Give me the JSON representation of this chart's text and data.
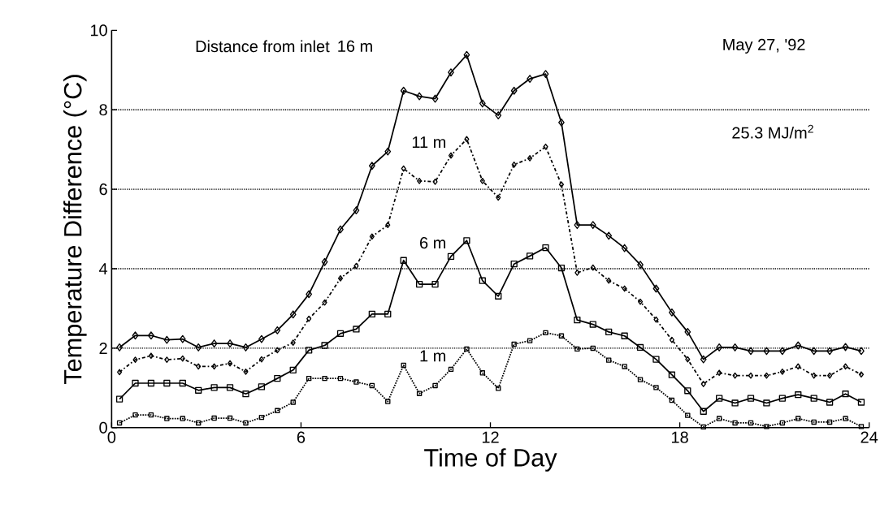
{
  "chart_data": {
    "type": "line",
    "xlabel": "Time of Day",
    "ylabel": "Temperature Difference (°C)",
    "legend_title": "Distance from inlet",
    "annotations": [
      "May 27, '92",
      "25.3 MJ/m$^{2}$"
    ],
    "x": [
      0.25,
      0.75,
      1.25,
      1.75,
      2.25,
      2.75,
      3.25,
      3.75,
      4.25,
      4.75,
      5.25,
      5.75,
      6.25,
      6.75,
      7.25,
      7.75,
      8.25,
      8.75,
      9.25,
      9.75,
      10.25,
      10.75,
      11.25,
      11.75,
      12.25,
      12.75,
      13.25,
      13.75,
      14.25,
      14.75,
      15.25,
      15.75,
      16.25,
      16.75,
      17.25,
      17.75,
      18.25,
      18.75,
      19.25,
      19.75,
      20.25,
      20.75,
      21.25,
      21.75,
      22.25,
      22.75,
      23.25,
      23.75
    ],
    "series": [
      {
        "name": "16 m",
        "color": "#000000",
        "marker": "diamond",
        "line_style": "solid",
        "values": [
          2.02,
          2.32,
          2.32,
          2.21,
          2.23,
          2.02,
          2.12,
          2.12,
          2.02,
          2.23,
          2.45,
          2.85,
          3.36,
          4.17,
          4.99,
          5.47,
          6.59,
          6.95,
          8.48,
          8.34,
          8.28,
          8.94,
          9.38,
          8.16,
          7.86,
          8.48,
          8.78,
          8.9,
          7.68,
          5.1,
          5.1,
          4.83,
          4.52,
          4.1,
          3.5,
          2.9,
          2.41,
          1.72,
          2.02,
          2.02,
          1.93,
          1.93,
          1.93,
          2.07,
          1.93,
          1.93,
          2.03,
          1.93
        ]
      },
      {
        "name": "11 m",
        "color": "#000000",
        "marker": "diamond",
        "line_style": "dashed",
        "values": [
          1.4,
          1.71,
          1.81,
          1.71,
          1.74,
          1.54,
          1.54,
          1.62,
          1.41,
          1.72,
          1.95,
          2.14,
          2.74,
          3.15,
          3.76,
          4.07,
          4.81,
          5.1,
          6.52,
          6.21,
          6.19,
          6.85,
          7.26,
          6.21,
          5.79,
          6.62,
          6.78,
          7.07,
          6.12,
          3.9,
          4.03,
          3.7,
          3.5,
          3.17,
          2.72,
          2.21,
          1.72,
          1.1,
          1.38,
          1.31,
          1.31,
          1.31,
          1.41,
          1.54,
          1.31,
          1.31,
          1.54,
          1.34
        ]
      },
      {
        "name": "6 m",
        "color": "#000000",
        "marker": "square",
        "line_style": "solid",
        "values": [
          0.72,
          1.12,
          1.12,
          1.12,
          1.12,
          0.94,
          1.01,
          1.01,
          0.85,
          1.03,
          1.24,
          1.45,
          1.95,
          2.07,
          2.37,
          2.48,
          2.86,
          2.86,
          4.21,
          3.61,
          3.61,
          4.31,
          4.71,
          3.7,
          3.31,
          4.12,
          4.32,
          4.53,
          4.02,
          2.71,
          2.6,
          2.41,
          2.31,
          2.02,
          1.72,
          1.33,
          0.93,
          0.41,
          0.74,
          0.62,
          0.74,
          0.62,
          0.74,
          0.83,
          0.74,
          0.64,
          0.85,
          0.64
        ]
      },
      {
        "name": "1 m",
        "color": "#000000",
        "marker": "square",
        "line_style": "dotted",
        "values": [
          0.12,
          0.32,
          0.32,
          0.23,
          0.23,
          0.12,
          0.24,
          0.24,
          0.12,
          0.26,
          0.43,
          0.64,
          1.24,
          1.24,
          1.24,
          1.15,
          1.06,
          0.66,
          1.57,
          0.86,
          1.06,
          1.47,
          1.98,
          1.38,
          0.99,
          2.1,
          2.19,
          2.39,
          2.31,
          1.98,
          2.0,
          1.7,
          1.54,
          1.21,
          1.01,
          0.69,
          0.31,
          0.02,
          0.23,
          0.12,
          0.12,
          0.03,
          0.12,
          0.23,
          0.14,
          0.14,
          0.23,
          0.03
        ]
      }
    ],
    "xlim": [
      0,
      24
    ],
    "ylim": [
      0,
      10
    ],
    "xticks": [
      0,
      6,
      12,
      18,
      24
    ],
    "yticks": [
      0,
      2,
      4,
      6,
      8,
      10
    ],
    "grid": "y"
  }
}
